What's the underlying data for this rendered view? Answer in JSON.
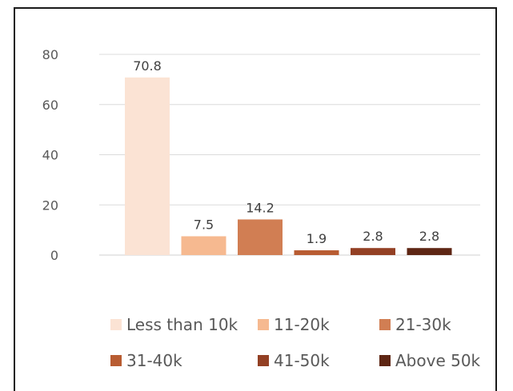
{
  "chart_data": {
    "type": "bar",
    "categories": [
      "Less than 10k",
      "11-20k",
      "21-30k",
      "31-40k",
      "41-50k",
      "Above 50k"
    ],
    "values": [
      70.8,
      7.5,
      14.2,
      1.9,
      2.8,
      2.8
    ],
    "data_labels": [
      "70.8",
      "7.5",
      "14.2",
      "1.9",
      "2.8",
      "2.8"
    ],
    "colors": [
      "#fbe3d4",
      "#f6b990",
      "#d17e53",
      "#b85c32",
      "#934024",
      "#5e2614"
    ],
    "ylim": [
      0,
      80
    ],
    "yticks": [
      "0",
      "20",
      "40",
      "60",
      "80"
    ],
    "grid": true,
    "legend_position": "bottom",
    "title": "",
    "xlabel": "",
    "ylabel": ""
  }
}
